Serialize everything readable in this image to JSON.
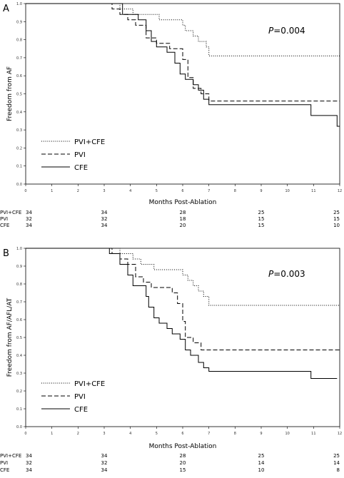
{
  "chart_data": [
    {
      "type": "line",
      "panel": "A",
      "ylabel": "Freedom from AF",
      "xlabel": "Months Post-Ablation",
      "xlim": [
        0,
        12
      ],
      "ylim": [
        0.0,
        1.0
      ],
      "x_ticks": [
        "0",
        "1",
        "2",
        "3",
        "4",
        "5",
        "6",
        "7",
        "8",
        "9",
        "10",
        "11",
        "12"
      ],
      "y_ticks": [
        "0.0",
        "0.1",
        "0.2",
        "0.3",
        "0.4",
        "0.5",
        "0.6",
        "0.7",
        "0.8",
        "0.9",
        "1.0"
      ],
      "annotation_p": "P",
      "annotation_val": "=0.004",
      "legend_position": "bottom-left",
      "grid": false,
      "series": [
        {
          "name": "PVI+CFE",
          "dash": "dotted",
          "points": [
            [
              0,
              1.0
            ],
            [
              3.6,
              1.0
            ],
            [
              3.6,
              0.97
            ],
            [
              4.1,
              0.97
            ],
            [
              4.1,
              0.94
            ],
            [
              5.1,
              0.94
            ],
            [
              5.1,
              0.91
            ],
            [
              6.0,
              0.91
            ],
            [
              6.0,
              0.88
            ],
            [
              6.1,
              0.88
            ],
            [
              6.1,
              0.85
            ],
            [
              6.4,
              0.85
            ],
            [
              6.4,
              0.82
            ],
            [
              6.6,
              0.82
            ],
            [
              6.6,
              0.79
            ],
            [
              6.9,
              0.79
            ],
            [
              6.9,
              0.76
            ],
            [
              7.0,
              0.76
            ],
            [
              7.0,
              0.71
            ],
            [
              12,
              0.71
            ]
          ]
        },
        {
          "name": "PVI",
          "dash": "dashed",
          "points": [
            [
              0,
              1.0
            ],
            [
              3.3,
              1.0
            ],
            [
              3.3,
              0.97
            ],
            [
              3.6,
              0.97
            ],
            [
              3.6,
              0.94
            ],
            [
              3.9,
              0.94
            ],
            [
              3.9,
              0.91
            ],
            [
              4.2,
              0.91
            ],
            [
              4.2,
              0.88
            ],
            [
              4.6,
              0.88
            ],
            [
              4.6,
              0.81
            ],
            [
              5.0,
              0.81
            ],
            [
              5.0,
              0.78
            ],
            [
              5.5,
              0.78
            ],
            [
              5.5,
              0.75
            ],
            [
              6.0,
              0.75
            ],
            [
              6.0,
              0.69
            ],
            [
              6.2,
              0.69
            ],
            [
              6.2,
              0.59
            ],
            [
              6.4,
              0.59
            ],
            [
              6.4,
              0.53
            ],
            [
              6.7,
              0.53
            ],
            [
              6.7,
              0.5
            ],
            [
              7.0,
              0.5
            ],
            [
              7.0,
              0.46
            ],
            [
              12,
              0.46
            ]
          ]
        },
        {
          "name": "CFE",
          "dash": "solid",
          "points": [
            [
              0,
              1.0
            ],
            [
              3.7,
              1.0
            ],
            [
              3.7,
              0.94
            ],
            [
              4.3,
              0.94
            ],
            [
              4.3,
              0.91
            ],
            [
              4.6,
              0.91
            ],
            [
              4.6,
              0.85
            ],
            [
              4.8,
              0.85
            ],
            [
              4.8,
              0.79
            ],
            [
              5.0,
              0.79
            ],
            [
              5.0,
              0.76
            ],
            [
              5.4,
              0.76
            ],
            [
              5.4,
              0.73
            ],
            [
              5.7,
              0.73
            ],
            [
              5.7,
              0.67
            ],
            [
              5.9,
              0.67
            ],
            [
              5.9,
              0.61
            ],
            [
              6.1,
              0.61
            ],
            [
              6.1,
              0.58
            ],
            [
              6.4,
              0.58
            ],
            [
              6.4,
              0.55
            ],
            [
              6.6,
              0.55
            ],
            [
              6.6,
              0.52
            ],
            [
              6.8,
              0.52
            ],
            [
              6.8,
              0.47
            ],
            [
              7.0,
              0.47
            ],
            [
              7.0,
              0.44
            ],
            [
              10.9,
              0.44
            ],
            [
              10.9,
              0.38
            ],
            [
              11.9,
              0.38
            ],
            [
              11.9,
              0.32
            ],
            [
              12,
              0.32
            ]
          ]
        }
      ],
      "risk_table": {
        "times": [
          "0",
          "3",
          "6",
          "9",
          "12"
        ],
        "rows": [
          {
            "label": "PVI+CFE",
            "values": [
              "34",
              "34",
              "28",
              "25",
              "25"
            ]
          },
          {
            "label": "PVI",
            "values": [
              "32",
              "32",
              "18",
              "15",
              "15"
            ]
          },
          {
            "label": "CFE",
            "values": [
              "34",
              "34",
              "20",
              "15",
              "10"
            ]
          }
        ]
      }
    },
    {
      "type": "line",
      "panel": "B",
      "ylabel": "Freedom from AF/AFL/AT",
      "xlabel": "Months Post-Ablation",
      "xlim": [
        0,
        12
      ],
      "ylim": [
        0.0,
        1.0
      ],
      "x_ticks": [
        "0",
        "1",
        "2",
        "3",
        "4",
        "5",
        "6",
        "7",
        "8",
        "9",
        "10",
        "11",
        "12"
      ],
      "y_ticks": [
        "0.0",
        "0.1",
        "0.2",
        "0.3",
        "0.4",
        "0.5",
        "0.6",
        "0.7",
        "0.8",
        "0.9",
        "1.0"
      ],
      "annotation_p": "P",
      "annotation_val": "=0.003",
      "legend_position": "bottom-left",
      "grid": false,
      "series": [
        {
          "name": "PVI+CFE",
          "dash": "dotted",
          "points": [
            [
              0,
              1.0
            ],
            [
              3.6,
              1.0
            ],
            [
              3.6,
              0.97
            ],
            [
              4.1,
              0.97
            ],
            [
              4.1,
              0.94
            ],
            [
              4.4,
              0.94
            ],
            [
              4.4,
              0.91
            ],
            [
              4.9,
              0.91
            ],
            [
              4.9,
              0.88
            ],
            [
              6.0,
              0.88
            ],
            [
              6.0,
              0.85
            ],
            [
              6.2,
              0.85
            ],
            [
              6.2,
              0.82
            ],
            [
              6.4,
              0.82
            ],
            [
              6.4,
              0.79
            ],
            [
              6.6,
              0.79
            ],
            [
              6.6,
              0.76
            ],
            [
              6.8,
              0.76
            ],
            [
              6.8,
              0.73
            ],
            [
              7.0,
              0.73
            ],
            [
              7.0,
              0.68
            ],
            [
              12,
              0.68
            ]
          ]
        },
        {
          "name": "PVI",
          "dash": "dashed",
          "points": [
            [
              0,
              1.0
            ],
            [
              3.3,
              1.0
            ],
            [
              3.3,
              0.97
            ],
            [
              3.6,
              0.97
            ],
            [
              3.6,
              0.94
            ],
            [
              3.9,
              0.94
            ],
            [
              3.9,
              0.91
            ],
            [
              4.2,
              0.91
            ],
            [
              4.2,
              0.84
            ],
            [
              4.5,
              0.84
            ],
            [
              4.5,
              0.81
            ],
            [
              4.8,
              0.81
            ],
            [
              4.8,
              0.78
            ],
            [
              5.6,
              0.78
            ],
            [
              5.6,
              0.75
            ],
            [
              5.8,
              0.75
            ],
            [
              5.8,
              0.69
            ],
            [
              6.0,
              0.69
            ],
            [
              6.0,
              0.59
            ],
            [
              6.1,
              0.59
            ],
            [
              6.1,
              0.5
            ],
            [
              6.4,
              0.5
            ],
            [
              6.4,
              0.47
            ],
            [
              6.7,
              0.47
            ],
            [
              6.7,
              0.43
            ],
            [
              12,
              0.43
            ]
          ]
        },
        {
          "name": "CFE",
          "dash": "solid",
          "points": [
            [
              0,
              1.0
            ],
            [
              3.2,
              1.0
            ],
            [
              3.2,
              0.97
            ],
            [
              3.6,
              0.97
            ],
            [
              3.6,
              0.91
            ],
            [
              3.9,
              0.91
            ],
            [
              3.9,
              0.85
            ],
            [
              4.1,
              0.85
            ],
            [
              4.1,
              0.79
            ],
            [
              4.6,
              0.79
            ],
            [
              4.6,
              0.73
            ],
            [
              4.7,
              0.73
            ],
            [
              4.7,
              0.67
            ],
            [
              4.9,
              0.67
            ],
            [
              4.9,
              0.61
            ],
            [
              5.1,
              0.61
            ],
            [
              5.1,
              0.58
            ],
            [
              5.4,
              0.58
            ],
            [
              5.4,
              0.55
            ],
            [
              5.6,
              0.55
            ],
            [
              5.6,
              0.52
            ],
            [
              5.9,
              0.52
            ],
            [
              5.9,
              0.49
            ],
            [
              6.1,
              0.49
            ],
            [
              6.1,
              0.43
            ],
            [
              6.3,
              0.43
            ],
            [
              6.3,
              0.4
            ],
            [
              6.6,
              0.4
            ],
            [
              6.6,
              0.36
            ],
            [
              6.8,
              0.36
            ],
            [
              6.8,
              0.33
            ],
            [
              7.0,
              0.33
            ],
            [
              7.0,
              0.31
            ],
            [
              10.9,
              0.31
            ],
            [
              10.9,
              0.27
            ],
            [
              11.9,
              0.27
            ]
          ]
        }
      ],
      "risk_table": {
        "times": [
          "0",
          "3",
          "6",
          "9",
          "12"
        ],
        "rows": [
          {
            "label": "PVI+CFE",
            "values": [
              "34",
              "34",
              "28",
              "25",
              "25"
            ]
          },
          {
            "label": "PVI",
            "values": [
              "32",
              "32",
              "20",
              "14",
              "14"
            ]
          },
          {
            "label": "CFE",
            "values": [
              "34",
              "34",
              "15",
              "10",
              "8"
            ]
          }
        ]
      }
    }
  ]
}
